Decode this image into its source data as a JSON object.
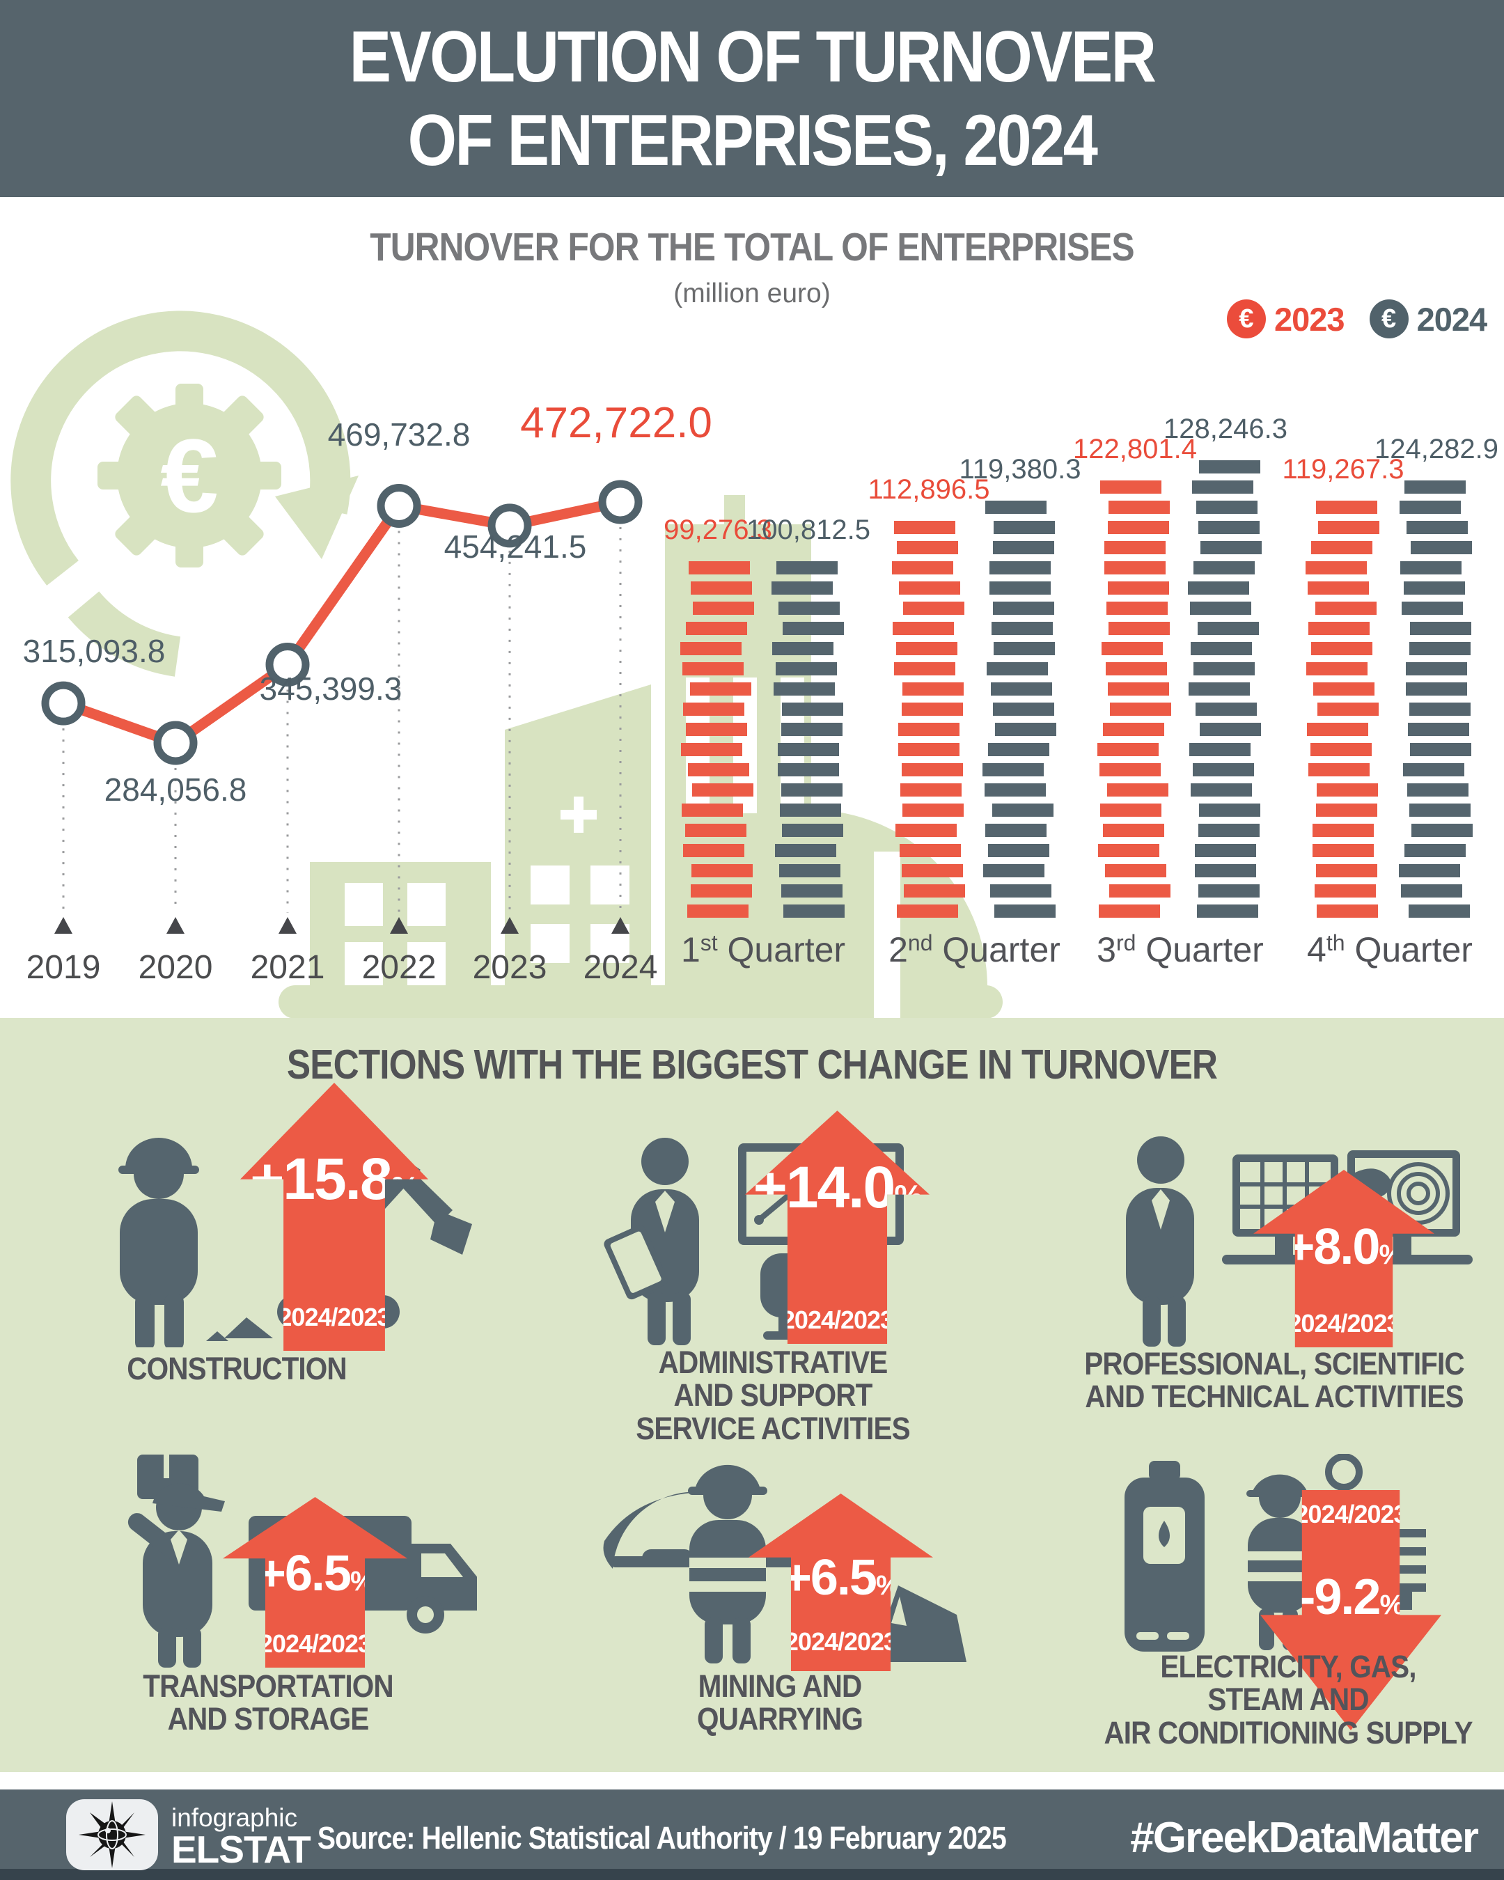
{
  "header": {
    "line1": "EVOLUTION OF TURNOVER",
    "line2": "OF ENTERPRISES, 2024"
  },
  "chart": {
    "title": "TURNOVER FOR THE TOTAL OF ENTERPRISES",
    "unit": "(million euro)",
    "legend": [
      {
        "symbol": "€",
        "label": "2023",
        "color": "#EB4C3B"
      },
      {
        "symbol": "€",
        "label": "2024",
        "color": "#51626B"
      }
    ]
  },
  "chart_data": [
    {
      "type": "line",
      "title": "Turnover for the total of enterprises, annual (million euro)",
      "x": [
        "2019",
        "2020",
        "2021",
        "2022",
        "2023",
        "2024"
      ],
      "values": [
        315093.8,
        284056.8,
        345399.3,
        469732.8,
        454241.5,
        472722.0
      ],
      "labels": [
        "315,093.8",
        "284,056.8",
        "345,399.3",
        "469,732.8",
        "454,241.5",
        "472,722.0"
      ],
      "highlight_index": 5,
      "line_color": "#EC5A45",
      "grid": false,
      "legend_position": "top-right"
    },
    {
      "type": "bar",
      "title": "Turnover for the total of enterprises, quarterly (million euro)",
      "categories": [
        "1st Quarter",
        "2nd Quarter",
        "3rd Quarter",
        "4th Quarter"
      ],
      "series": [
        {
          "name": "2023",
          "color": "#EC5A45",
          "values": [
            99276.3,
            112896.5,
            122801.4,
            119267.3
          ],
          "labels": [
            "99,276.3",
            "112,896.5",
            "122,801.4",
            "119,267.3"
          ]
        },
        {
          "name": "2024",
          "color": "#55656E",
          "values": [
            100812.5,
            119380.3,
            128246.3,
            124282.9
          ],
          "labels": [
            "100,812.5",
            "119,380.3",
            "128,246.3",
            "124,282.9"
          ]
        }
      ],
      "ylim": [
        0,
        130000
      ]
    }
  ],
  "sections": {
    "title": "SECTIONS WITH THE BIGGEST CHANGE IN TURNOVER",
    "period_label": "2024/2023",
    "pct_symbol": "%",
    "items": [
      {
        "name": "CONSTRUCTION",
        "lines": [
          "CONSTRUCTION",
          "",
          ""
        ],
        "change": "+15.8",
        "direction": "up"
      },
      {
        "name": "ADMINISTRATIVE AND SUPPORT SERVICE ACTIVITIES",
        "lines": [
          "ADMINISTRATIVE",
          "AND SUPPORT",
          "SERVICE ACTIVITIES"
        ],
        "change": "+14.0",
        "direction": "up"
      },
      {
        "name": "PROFESSIONAL, SCIENTIFIC AND TECHNICAL ACTIVITIES",
        "lines": [
          "PROFESSIONAL, SCIENTIFIC",
          "AND TECHNICAL ACTIVITIES",
          ""
        ],
        "change": "+8.0",
        "direction": "up"
      },
      {
        "name": "TRANSPORTATION AND STORAGE",
        "lines": [
          "TRANSPORTATION",
          "AND STORAGE",
          ""
        ],
        "change": "+6.5",
        "direction": "up"
      },
      {
        "name": "MINING AND QUARRYING",
        "lines": [
          "MINING AND",
          "QUARRYING",
          ""
        ],
        "change": "+6.5",
        "direction": "up"
      },
      {
        "name": "ELECTRICITY, GAS, STEAM AND AIR CONDITIONING SUPPLY",
        "lines": [
          "ELECTRICITY, GAS,",
          "STEAM AND",
          "AIR CONDITIONING SUPPLY"
        ],
        "change": "-9.2",
        "direction": "down"
      }
    ]
  },
  "footer": {
    "brand_top": "infographic",
    "brand_name": "ELSTAT",
    "source": "Source: Hellenic Statistical Authority / 19 February 2025",
    "hashtag": "#GreekDataMatter"
  }
}
